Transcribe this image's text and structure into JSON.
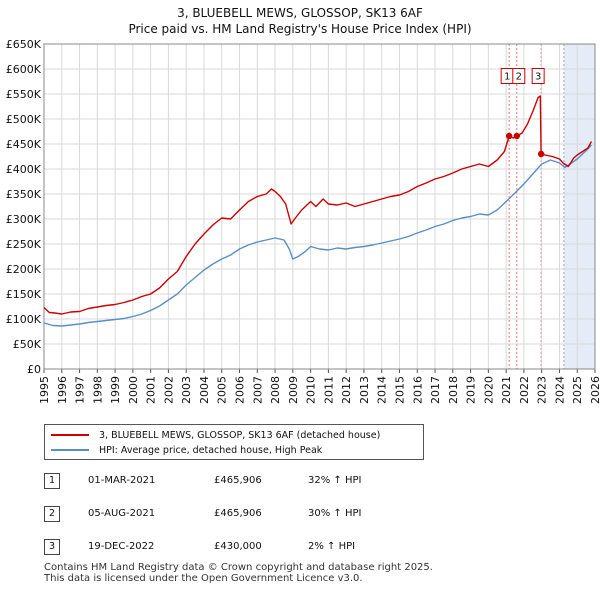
{
  "title": {
    "line1": "3, BLUEBELL MEWS, GLOSSOP, SK13 6AF",
    "line2": "Price paid vs. HM Land Registry's House Price Index (HPI)"
  },
  "chart_data": {
    "type": "line",
    "xlim": [
      1995,
      2026
    ],
    "ylim": [
      0,
      650000
    ],
    "x_ticks": [
      "1995",
      "1996",
      "1997",
      "1998",
      "1999",
      "2000",
      "2001",
      "2002",
      "2003",
      "2004",
      "2005",
      "2006",
      "2007",
      "2008",
      "2009",
      "2010",
      "2011",
      "2012",
      "2013",
      "2014",
      "2015",
      "2016",
      "2017",
      "2018",
      "2019",
      "2020",
      "2021",
      "2022",
      "2023",
      "2024",
      "2025",
      "2026"
    ],
    "y_ticks": [
      {
        "value": 0,
        "label": "£0"
      },
      {
        "value": 50000,
        "label": "£50K"
      },
      {
        "value": 100000,
        "label": "£100K"
      },
      {
        "value": 150000,
        "label": "£150K"
      },
      {
        "value": 200000,
        "label": "£200K"
      },
      {
        "value": 250000,
        "label": "£250K"
      },
      {
        "value": 300000,
        "label": "£300K"
      },
      {
        "value": 350000,
        "label": "£350K"
      },
      {
        "value": 400000,
        "label": "£400K"
      },
      {
        "value": 450000,
        "label": "£450K"
      },
      {
        "value": 500000,
        "label": "£500K"
      },
      {
        "value": 550000,
        "label": "£550K"
      },
      {
        "value": 600000,
        "label": "£600K"
      },
      {
        "value": 650000,
        "label": "£650K"
      }
    ],
    "shaded_region": [
      2024.25,
      2026
    ],
    "series": [
      {
        "name": "3, BLUEBELL MEWS, GLOSSOP, SK13 6AF (detached house)",
        "color": "#cc0000",
        "points": [
          [
            1995.0,
            123000
          ],
          [
            1995.3,
            113000
          ],
          [
            1995.6,
            112000
          ],
          [
            1996.0,
            110000
          ],
          [
            1996.5,
            114000
          ],
          [
            1997.0,
            115000
          ],
          [
            1997.5,
            121000
          ],
          [
            1998.0,
            124000
          ],
          [
            1998.5,
            127000
          ],
          [
            1999.0,
            129000
          ],
          [
            1999.5,
            133000
          ],
          [
            2000.0,
            138000
          ],
          [
            2000.5,
            145000
          ],
          [
            2001.0,
            150000
          ],
          [
            2001.5,
            162000
          ],
          [
            2002.0,
            180000
          ],
          [
            2002.5,
            195000
          ],
          [
            2003.0,
            225000
          ],
          [
            2003.5,
            250000
          ],
          [
            2004.0,
            270000
          ],
          [
            2004.5,
            288000
          ],
          [
            2005.0,
            302000
          ],
          [
            2005.5,
            300000
          ],
          [
            2006.0,
            318000
          ],
          [
            2006.5,
            335000
          ],
          [
            2007.0,
            345000
          ],
          [
            2007.5,
            350000
          ],
          [
            2007.8,
            360000
          ],
          [
            2008.0,
            355000
          ],
          [
            2008.3,
            345000
          ],
          [
            2008.6,
            330000
          ],
          [
            2008.9,
            290000
          ],
          [
            2009.1,
            300000
          ],
          [
            2009.5,
            318000
          ],
          [
            2010.0,
            335000
          ],
          [
            2010.3,
            325000
          ],
          [
            2010.7,
            340000
          ],
          [
            2011.0,
            330000
          ],
          [
            2011.5,
            328000
          ],
          [
            2012.0,
            332000
          ],
          [
            2012.5,
            325000
          ],
          [
            2013.0,
            330000
          ],
          [
            2013.5,
            335000
          ],
          [
            2014.0,
            340000
          ],
          [
            2014.5,
            345000
          ],
          [
            2015.0,
            348000
          ],
          [
            2015.5,
            355000
          ],
          [
            2016.0,
            365000
          ],
          [
            2016.5,
            372000
          ],
          [
            2017.0,
            380000
          ],
          [
            2017.5,
            385000
          ],
          [
            2018.0,
            392000
          ],
          [
            2018.5,
            400000
          ],
          [
            2019.0,
            405000
          ],
          [
            2019.5,
            410000
          ],
          [
            2020.0,
            405000
          ],
          [
            2020.5,
            418000
          ],
          [
            2020.9,
            435000
          ],
          [
            2021.17,
            465906
          ],
          [
            2021.4,
            462000
          ],
          [
            2021.6,
            465906
          ],
          [
            2021.9,
            472000
          ],
          [
            2022.2,
            490000
          ],
          [
            2022.5,
            515000
          ],
          [
            2022.8,
            543000
          ],
          [
            2022.92,
            546000
          ],
          [
            2022.97,
            430000
          ],
          [
            2023.2,
            428000
          ],
          [
            2023.6,
            425000
          ],
          [
            2024.0,
            420000
          ],
          [
            2024.2,
            412000
          ],
          [
            2024.5,
            405000
          ],
          [
            2024.8,
            422000
          ],
          [
            2025.0,
            428000
          ],
          [
            2025.3,
            435000
          ],
          [
            2025.6,
            442000
          ],
          [
            2025.8,
            455000
          ]
        ]
      },
      {
        "name": "HPI: Average price, detached house, High Peak",
        "color": "#5b8ec9",
        "points": [
          [
            1995.0,
            92000
          ],
          [
            1995.5,
            87000
          ],
          [
            1996.0,
            86000
          ],
          [
            1996.5,
            88000
          ],
          [
            1997.0,
            90000
          ],
          [
            1997.5,
            93000
          ],
          [
            1998.0,
            95000
          ],
          [
            1998.5,
            97000
          ],
          [
            1999.0,
            99000
          ],
          [
            1999.5,
            101000
          ],
          [
            2000.0,
            105000
          ],
          [
            2000.5,
            110000
          ],
          [
            2001.0,
            117000
          ],
          [
            2001.5,
            126000
          ],
          [
            2002.0,
            138000
          ],
          [
            2002.5,
            150000
          ],
          [
            2003.0,
            168000
          ],
          [
            2003.5,
            183000
          ],
          [
            2004.0,
            198000
          ],
          [
            2004.5,
            210000
          ],
          [
            2005.0,
            220000
          ],
          [
            2005.5,
            228000
          ],
          [
            2006.0,
            240000
          ],
          [
            2006.5,
            248000
          ],
          [
            2007.0,
            254000
          ],
          [
            2007.5,
            258000
          ],
          [
            2008.0,
            262000
          ],
          [
            2008.5,
            258000
          ],
          [
            2008.8,
            240000
          ],
          [
            2009.0,
            220000
          ],
          [
            2009.3,
            225000
          ],
          [
            2009.7,
            235000
          ],
          [
            2010.0,
            245000
          ],
          [
            2010.5,
            240000
          ],
          [
            2011.0,
            238000
          ],
          [
            2011.5,
            242000
          ],
          [
            2012.0,
            240000
          ],
          [
            2012.5,
            243000
          ],
          [
            2013.0,
            245000
          ],
          [
            2013.5,
            248000
          ],
          [
            2014.0,
            252000
          ],
          [
            2014.5,
            256000
          ],
          [
            2015.0,
            260000
          ],
          [
            2015.5,
            265000
          ],
          [
            2016.0,
            272000
          ],
          [
            2016.5,
            278000
          ],
          [
            2017.0,
            285000
          ],
          [
            2017.5,
            290000
          ],
          [
            2018.0,
            297000
          ],
          [
            2018.5,
            302000
          ],
          [
            2019.0,
            305000
          ],
          [
            2019.5,
            310000
          ],
          [
            2020.0,
            308000
          ],
          [
            2020.5,
            318000
          ],
          [
            2021.0,
            335000
          ],
          [
            2021.5,
            352000
          ],
          [
            2022.0,
            370000
          ],
          [
            2022.5,
            390000
          ],
          [
            2023.0,
            410000
          ],
          [
            2023.5,
            418000
          ],
          [
            2024.0,
            412000
          ],
          [
            2024.3,
            403000
          ],
          [
            2024.6,
            410000
          ],
          [
            2025.0,
            420000
          ],
          [
            2025.3,
            430000
          ],
          [
            2025.6,
            440000
          ],
          [
            2025.8,
            448000
          ]
        ]
      }
    ],
    "markers": [
      {
        "id": "1",
        "x": 2021.17,
        "y": 465906
      },
      {
        "id": "2",
        "x": 2021.6,
        "y": 465906
      },
      {
        "id": "3",
        "x": 2022.97,
        "y": 430000
      }
    ]
  },
  "legend": {
    "property_label": "3, BLUEBELL MEWS, GLOSSOP, SK13 6AF (detached house)",
    "hpi_label": "HPI: Average price, detached house, High Peak"
  },
  "sales": [
    {
      "num": "1",
      "date": "01-MAR-2021",
      "price": "£465,906",
      "hpi": "32% ↑ HPI"
    },
    {
      "num": "2",
      "date": "05-AUG-2021",
      "price": "£465,906",
      "hpi": "30% ↑ HPI"
    },
    {
      "num": "3",
      "date": "19-DEC-2022",
      "price": "£430,000",
      "hpi": "2% ↑ HPI"
    }
  ],
  "footer": {
    "line1": "Contains HM Land Registry data © Crown copyright and database right 2025.",
    "line2": "This data is licensed under the Open Government Licence v3.0."
  }
}
